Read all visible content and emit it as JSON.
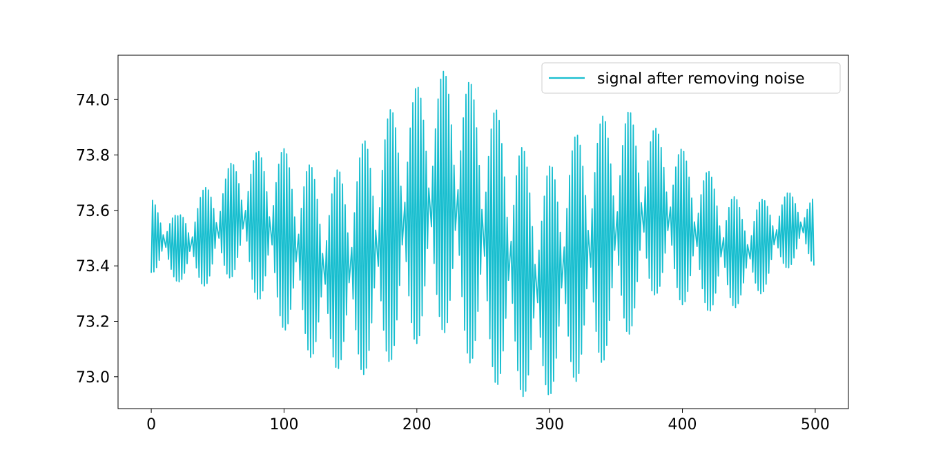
{
  "chart_data": {
    "type": "line",
    "title": "",
    "xlabel": "",
    "ylabel": "",
    "xlim": [
      -25,
      525
    ],
    "ylim": [
      72.885,
      74.16
    ],
    "x_ticks": [
      0,
      100,
      200,
      300,
      400,
      500
    ],
    "x_tick_labels": [
      "0",
      "100",
      "200",
      "300",
      "400",
      "500"
    ],
    "y_ticks": [
      73.0,
      73.2,
      73.4,
      73.6,
      73.8,
      74.0
    ],
    "y_tick_labels": [
      "73.0",
      "73.2",
      "73.4",
      "73.6",
      "73.8",
      "74.0"
    ],
    "grid": false,
    "legend": {
      "position": "top-right"
    },
    "x_range": [
      0,
      499
    ],
    "n_points": 500,
    "series": [
      {
        "name": "signal after removing noise",
        "color": "#17becf",
        "points": [
          [
            0,
            73.375
          ],
          [
            1,
            73.64
          ],
          [
            4,
            73.36
          ],
          [
            7,
            73.63
          ],
          [
            16,
            73.34
          ],
          [
            30,
            73.325
          ],
          [
            60,
            73.38
          ],
          [
            90,
            73.835
          ],
          [
            100,
            73.83
          ],
          [
            125,
            73.74
          ],
          [
            135,
            73.6
          ],
          [
            153,
            73.0
          ],
          [
            160,
            73.01
          ],
          [
            200,
            73.95
          ],
          [
            215,
            73.17
          ],
          [
            220,
            74.11
          ],
          [
            230,
            74.115
          ],
          [
            260,
            73.75
          ],
          [
            290,
            72.915
          ],
          [
            300,
            72.925
          ],
          [
            305,
            73.62
          ],
          [
            360,
            73.96
          ],
          [
            370,
            73.95
          ],
          [
            380,
            73.3
          ],
          [
            420,
            73.23
          ],
          [
            430,
            73.235
          ],
          [
            445,
            73.6
          ],
          [
            465,
            73.4
          ],
          [
            475,
            73.665
          ],
          [
            480,
            73.665
          ],
          [
            490,
            73.43
          ],
          [
            499,
            73.645
          ]
        ]
      }
    ]
  }
}
